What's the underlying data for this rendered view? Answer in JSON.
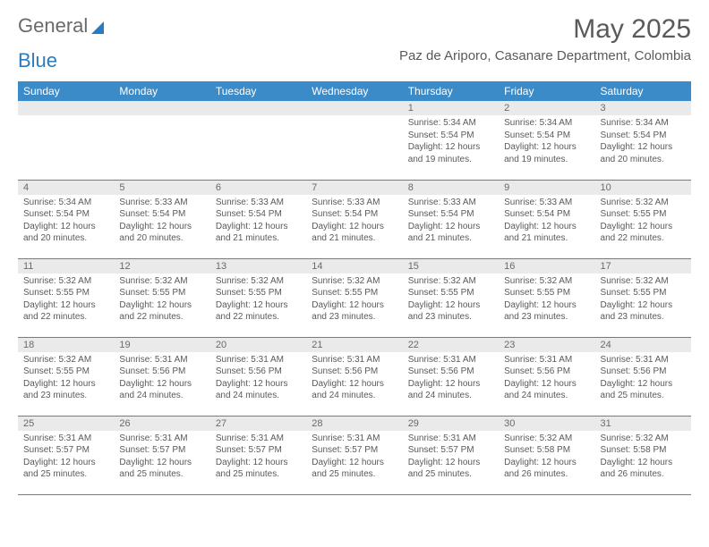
{
  "brand": {
    "part1": "General",
    "part2": "Blue"
  },
  "title": "May 2025",
  "location": "Paz de Ariporo, Casanare Department, Colombia",
  "colors": {
    "header_bg": "#3b8bc9",
    "header_text": "#ffffff",
    "daynum_bg": "#eaeaea",
    "text": "#5a5a5a",
    "rule": "#3b8bc9",
    "background": "#ffffff"
  },
  "typography": {
    "title_fontsize": 30,
    "location_fontsize": 15,
    "weekday_fontsize": 12,
    "daynum_fontsize": 11,
    "cell_fontsize": 10
  },
  "weekdays": [
    "Sunday",
    "Monday",
    "Tuesday",
    "Wednesday",
    "Thursday",
    "Friday",
    "Saturday"
  ],
  "weeks": [
    [
      null,
      null,
      null,
      null,
      {
        "n": "1",
        "sr": "5:34 AM",
        "ss": "5:54 PM",
        "dl": "12 hours and 19 minutes."
      },
      {
        "n": "2",
        "sr": "5:34 AM",
        "ss": "5:54 PM",
        "dl": "12 hours and 19 minutes."
      },
      {
        "n": "3",
        "sr": "5:34 AM",
        "ss": "5:54 PM",
        "dl": "12 hours and 20 minutes."
      }
    ],
    [
      {
        "n": "4",
        "sr": "5:34 AM",
        "ss": "5:54 PM",
        "dl": "12 hours and 20 minutes."
      },
      {
        "n": "5",
        "sr": "5:33 AM",
        "ss": "5:54 PM",
        "dl": "12 hours and 20 minutes."
      },
      {
        "n": "6",
        "sr": "5:33 AM",
        "ss": "5:54 PM",
        "dl": "12 hours and 21 minutes."
      },
      {
        "n": "7",
        "sr": "5:33 AM",
        "ss": "5:54 PM",
        "dl": "12 hours and 21 minutes."
      },
      {
        "n": "8",
        "sr": "5:33 AM",
        "ss": "5:54 PM",
        "dl": "12 hours and 21 minutes."
      },
      {
        "n": "9",
        "sr": "5:33 AM",
        "ss": "5:54 PM",
        "dl": "12 hours and 21 minutes."
      },
      {
        "n": "10",
        "sr": "5:32 AM",
        "ss": "5:55 PM",
        "dl": "12 hours and 22 minutes."
      }
    ],
    [
      {
        "n": "11",
        "sr": "5:32 AM",
        "ss": "5:55 PM",
        "dl": "12 hours and 22 minutes."
      },
      {
        "n": "12",
        "sr": "5:32 AM",
        "ss": "5:55 PM",
        "dl": "12 hours and 22 minutes."
      },
      {
        "n": "13",
        "sr": "5:32 AM",
        "ss": "5:55 PM",
        "dl": "12 hours and 22 minutes."
      },
      {
        "n": "14",
        "sr": "5:32 AM",
        "ss": "5:55 PM",
        "dl": "12 hours and 23 minutes."
      },
      {
        "n": "15",
        "sr": "5:32 AM",
        "ss": "5:55 PM",
        "dl": "12 hours and 23 minutes."
      },
      {
        "n": "16",
        "sr": "5:32 AM",
        "ss": "5:55 PM",
        "dl": "12 hours and 23 minutes."
      },
      {
        "n": "17",
        "sr": "5:32 AM",
        "ss": "5:55 PM",
        "dl": "12 hours and 23 minutes."
      }
    ],
    [
      {
        "n": "18",
        "sr": "5:32 AM",
        "ss": "5:55 PM",
        "dl": "12 hours and 23 minutes."
      },
      {
        "n": "19",
        "sr": "5:31 AM",
        "ss": "5:56 PM",
        "dl": "12 hours and 24 minutes."
      },
      {
        "n": "20",
        "sr": "5:31 AM",
        "ss": "5:56 PM",
        "dl": "12 hours and 24 minutes."
      },
      {
        "n": "21",
        "sr": "5:31 AM",
        "ss": "5:56 PM",
        "dl": "12 hours and 24 minutes."
      },
      {
        "n": "22",
        "sr": "5:31 AM",
        "ss": "5:56 PM",
        "dl": "12 hours and 24 minutes."
      },
      {
        "n": "23",
        "sr": "5:31 AM",
        "ss": "5:56 PM",
        "dl": "12 hours and 24 minutes."
      },
      {
        "n": "24",
        "sr": "5:31 AM",
        "ss": "5:56 PM",
        "dl": "12 hours and 25 minutes."
      }
    ],
    [
      {
        "n": "25",
        "sr": "5:31 AM",
        "ss": "5:57 PM",
        "dl": "12 hours and 25 minutes."
      },
      {
        "n": "26",
        "sr": "5:31 AM",
        "ss": "5:57 PM",
        "dl": "12 hours and 25 minutes."
      },
      {
        "n": "27",
        "sr": "5:31 AM",
        "ss": "5:57 PM",
        "dl": "12 hours and 25 minutes."
      },
      {
        "n": "28",
        "sr": "5:31 AM",
        "ss": "5:57 PM",
        "dl": "12 hours and 25 minutes."
      },
      {
        "n": "29",
        "sr": "5:31 AM",
        "ss": "5:57 PM",
        "dl": "12 hours and 25 minutes."
      },
      {
        "n": "30",
        "sr": "5:32 AM",
        "ss": "5:58 PM",
        "dl": "12 hours and 26 minutes."
      },
      {
        "n": "31",
        "sr": "5:32 AM",
        "ss": "5:58 PM",
        "dl": "12 hours and 26 minutes."
      }
    ]
  ],
  "labels": {
    "sunrise": "Sunrise: ",
    "sunset": "Sunset: ",
    "daylight": "Daylight: "
  }
}
